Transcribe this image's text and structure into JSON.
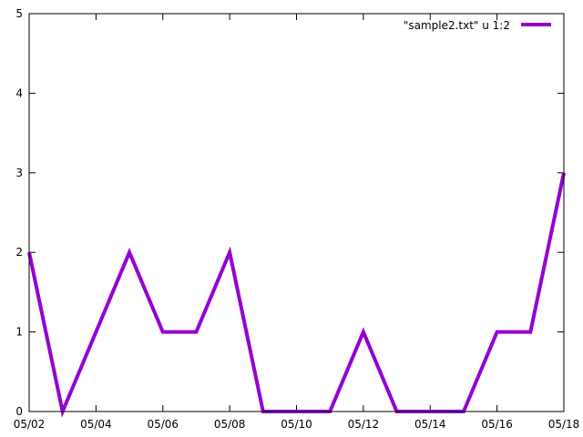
{
  "chart_data": {
    "type": "line",
    "title": "",
    "xlabel": "",
    "ylabel": "",
    "x_type": "date",
    "x": [
      "05/02",
      "05/03",
      "05/04",
      "05/05",
      "05/06",
      "05/07",
      "05/08",
      "05/09",
      "05/10",
      "05/11",
      "05/12",
      "05/13",
      "05/14",
      "05/15",
      "05/16",
      "05/17",
      "05/18"
    ],
    "series": [
      {
        "name": "\"sample2.txt\" u 1:2",
        "color": "#9400d3",
        "values": [
          2,
          0,
          1,
          2,
          1,
          1,
          2,
          0,
          0,
          0,
          1,
          0,
          0,
          0,
          1,
          1,
          3
        ]
      }
    ],
    "xticks": [
      "05/02",
      "05/04",
      "05/06",
      "05/08",
      "05/10",
      "05/12",
      "05/14",
      "05/16",
      "05/18"
    ],
    "yticks": [
      0,
      1,
      2,
      3,
      4,
      5
    ],
    "xlim": [
      "05/02",
      "05/18"
    ],
    "ylim": [
      0,
      5
    ],
    "grid": false,
    "legend_position": "top-right",
    "axis_color": "#000000"
  }
}
